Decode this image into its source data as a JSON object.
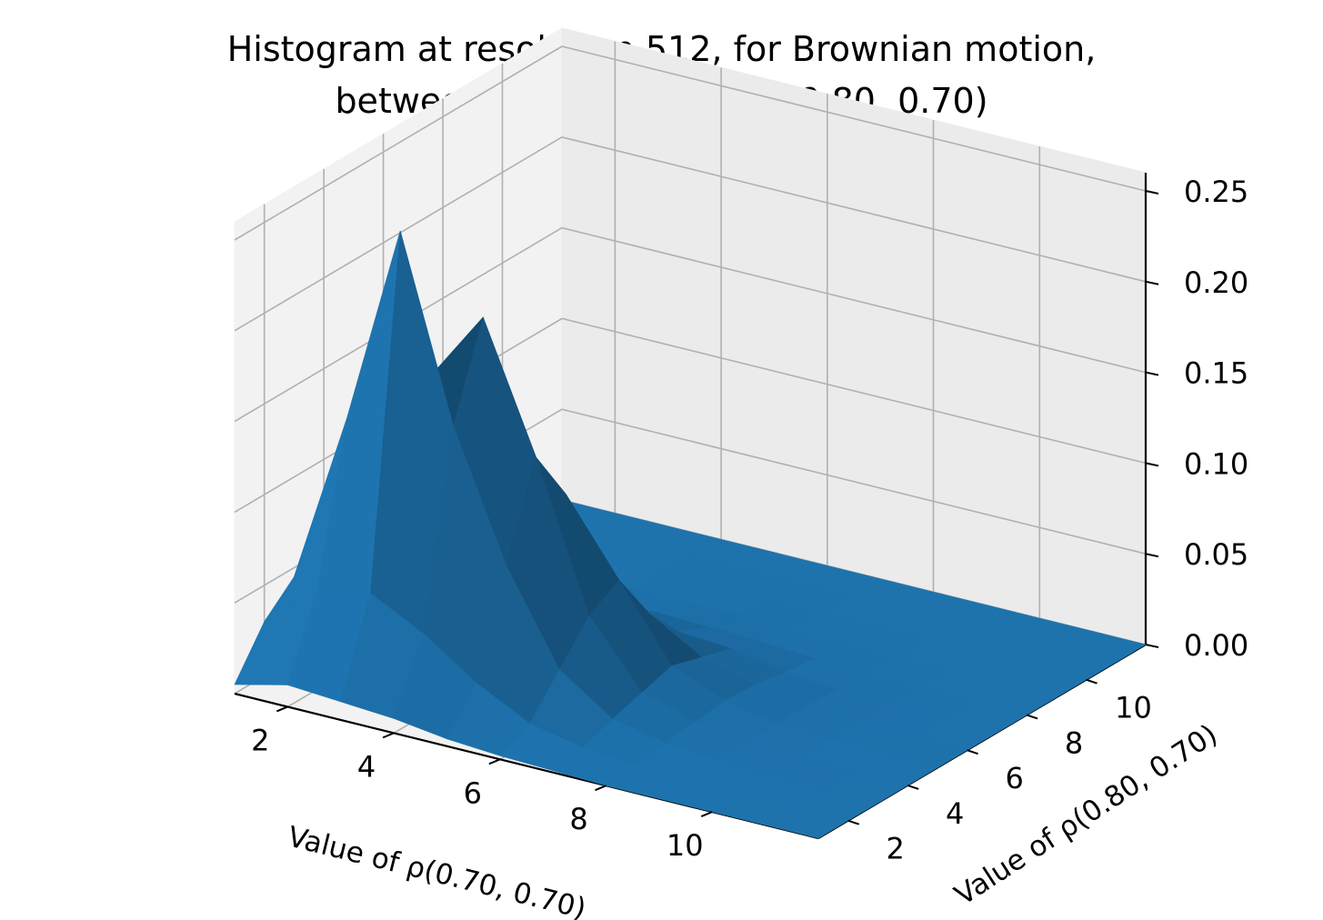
{
  "chart_data": {
    "type": "surface",
    "title": [
      "Histogram at resolution 512, for Brownian motion,",
      "between (0.70, 0.70) and (0.80, 0.70)"
    ],
    "xlabel": "Value of ρ(0.70, 0.70)",
    "ylabel": "Value of ρ(0.80, 0.70)",
    "zlabel": "",
    "x_ticks": [
      "2",
      "4",
      "6",
      "8",
      "10"
    ],
    "y_ticks": [
      "2",
      "4",
      "6",
      "8",
      "10"
    ],
    "z_ticks": [
      "0.00",
      "0.05",
      "0.10",
      "0.15",
      "0.20",
      "0.25"
    ],
    "xlim": [
      1,
      12
    ],
    "ylim": [
      1,
      12
    ],
    "zlim": [
      0,
      0.26
    ],
    "grid": true,
    "surface_color": "#1f77b4",
    "grid_x": [
      1,
      2,
      3,
      4,
      5,
      6,
      7,
      8,
      9,
      10,
      11,
      12
    ],
    "grid_y": [
      1,
      2,
      3,
      4,
      5,
      6,
      7,
      8,
      9,
      10,
      11,
      12
    ],
    "z": [
      [
        0.005,
        0.03,
        0.045,
        0.03,
        0.012,
        0.004,
        0.002,
        0.001,
        0.0,
        0.0,
        0.0,
        0.0
      ],
      [
        0.012,
        0.055,
        0.14,
        0.11,
        0.055,
        0.02,
        0.008,
        0.003,
        0.001,
        0.0,
        0.0,
        0.0
      ],
      [
        0.01,
        0.06,
        0.25,
        0.16,
        0.09,
        0.035,
        0.012,
        0.004,
        0.001,
        0.0,
        0.0,
        0.0
      ],
      [
        0.008,
        0.045,
        0.15,
        0.2,
        0.115,
        0.05,
        0.015,
        0.005,
        0.002,
        0.001,
        0.0,
        0.0
      ],
      [
        0.004,
        0.025,
        0.08,
        0.13,
        0.1,
        0.055,
        0.018,
        0.006,
        0.002,
        0.001,
        0.0,
        0.0
      ],
      [
        0.002,
        0.01,
        0.03,
        0.05,
        0.06,
        0.032,
        0.012,
        0.005,
        0.002,
        0.001,
        0.0,
        0.0
      ],
      [
        0.001,
        0.004,
        0.01,
        0.015,
        0.02,
        0.015,
        0.01,
        0.004,
        0.001,
        0.0,
        0.0,
        0.0
      ],
      [
        0.0,
        0.002,
        0.004,
        0.006,
        0.008,
        0.007,
        0.004,
        0.002,
        0.001,
        0.0,
        0.0,
        0.0
      ],
      [
        0.0,
        0.001,
        0.002,
        0.002,
        0.003,
        0.003,
        0.002,
        0.001,
        0.0,
        0.0,
        0.0,
        0.0
      ],
      [
        0.0,
        0.0,
        0.001,
        0.001,
        0.001,
        0.001,
        0.001,
        0.0,
        0.0,
        0.0,
        0.0,
        0.0
      ],
      [
        0.0,
        0.0,
        0.0,
        0.0,
        0.001,
        0.0,
        0.0,
        0.0,
        0.0,
        0.0,
        0.0,
        0.0
      ],
      [
        0.0,
        0.0,
        0.0,
        0.0,
        0.0,
        0.0,
        0.0,
        0.0,
        0.0,
        0.0,
        0.0,
        0.0
      ]
    ]
  }
}
